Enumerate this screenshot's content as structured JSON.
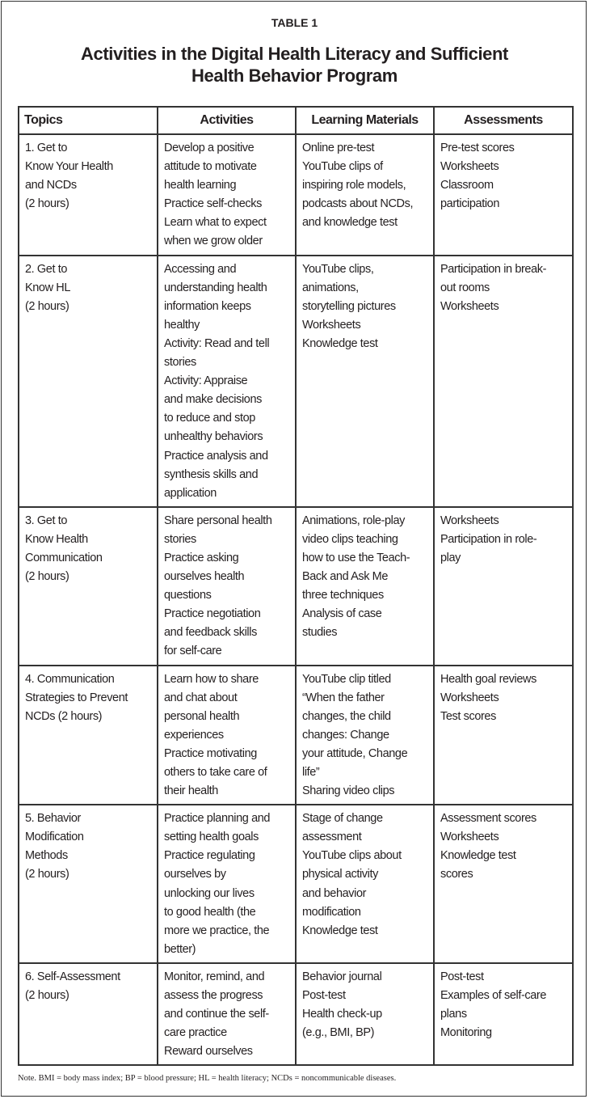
{
  "label": "TABLE 1",
  "title_lines": [
    "Activities in the Digital Health Literacy and Sufficient",
    "Health Behavior Program"
  ],
  "columns": [
    "Topics",
    "Activities",
    "Learning Materials",
    "Assessments"
  ],
  "rows": [
    [
      [
        "1. Get to",
        "Know Your Health",
        "and NCDs",
        "(2 hours)"
      ],
      [
        "Develop a positive",
        "attitude to motivate",
        "health learning",
        "Practice self-checks",
        "Learn what to expect",
        "when we grow older"
      ],
      [
        "Online pre-test",
        "YouTube clips of",
        "inspiring role models,",
        "podcasts about NCDs,",
        "and knowledge test"
      ],
      [
        "Pre-test scores",
        "Worksheets",
        "Classroom",
        "participation"
      ]
    ],
    [
      [
        "2. Get to",
        "Know HL",
        "(2 hours)"
      ],
      [
        "Accessing and",
        "understanding health",
        "information keeps",
        "healthy",
        "Activity: Read and tell",
        "stories",
        "Activity: Appraise",
        "and make decisions",
        "to reduce and stop",
        "unhealthy behaviors",
        "Practice analysis and",
        "synthesis skills and",
        "application"
      ],
      [
        "YouTube clips,",
        "animations,",
        "storytelling pictures",
        "Worksheets",
        "Knowledge test"
      ],
      [
        "Participation in break-",
        "out rooms",
        "Worksheets"
      ]
    ],
    [
      [
        "3. Get to",
        "Know Health",
        "Communication",
        "(2 hours)"
      ],
      [
        "Share personal health",
        "stories",
        "Practice asking",
        "ourselves health",
        "questions",
        "Practice negotiation",
        "and feedback skills",
        "for self-care"
      ],
      [
        "Animations, role-play",
        "video clips teaching",
        "how to use the Teach-",
        "Back and Ask Me",
        "three techniques",
        "Analysis of case",
        "studies"
      ],
      [
        "Worksheets",
        "Participation in role-",
        "play"
      ]
    ],
    [
      [
        "4. Communication",
        "Strategies to Prevent",
        "NCDs  (2 hours)"
      ],
      [
        "Learn how to share",
        "and chat about",
        "personal health",
        "experiences",
        "Practice motivating",
        "others to take care of",
        "their health"
      ],
      [
        "YouTube clip titled",
        "“When the father",
        "changes, the child",
        "changes: Change",
        "your attitude, Change",
        "life”",
        "Sharing video clips"
      ],
      [
        "Health goal reviews",
        "Worksheets",
        "Test scores"
      ]
    ],
    [
      [
        "5. Behavior",
        "Modification",
        "Methods",
        "(2 hours)"
      ],
      [
        "Practice planning and",
        "setting health goals",
        "Practice regulating",
        "ourselves by",
        "unlocking our lives",
        "to good health (the",
        "more we practice, the",
        "better)"
      ],
      [
        "Stage of change",
        "assessment",
        "YouTube clips about",
        "physical activity",
        "and behavior",
        "modification",
        "Knowledge test"
      ],
      [
        "Assessment scores",
        "Worksheets",
        "Knowledge test",
        "scores"
      ]
    ],
    [
      [
        "6. Self-Assessment",
        "(2 hours)"
      ],
      [
        "Monitor, remind, and",
        "assess the progress",
        "and continue the self-",
        "care practice",
        "Reward ourselves"
      ],
      [
        "Behavior journal",
        "Post-test",
        "Health check-up",
        "(e.g., BMI, BP)"
      ],
      [
        "Post-test",
        "Examples of self-care",
        "plans",
        "Monitoring"
      ]
    ]
  ],
  "note": "Note. BMI = body mass index; BP = blood pressure; HL = health literacy; NCDs = noncommunicable diseases."
}
